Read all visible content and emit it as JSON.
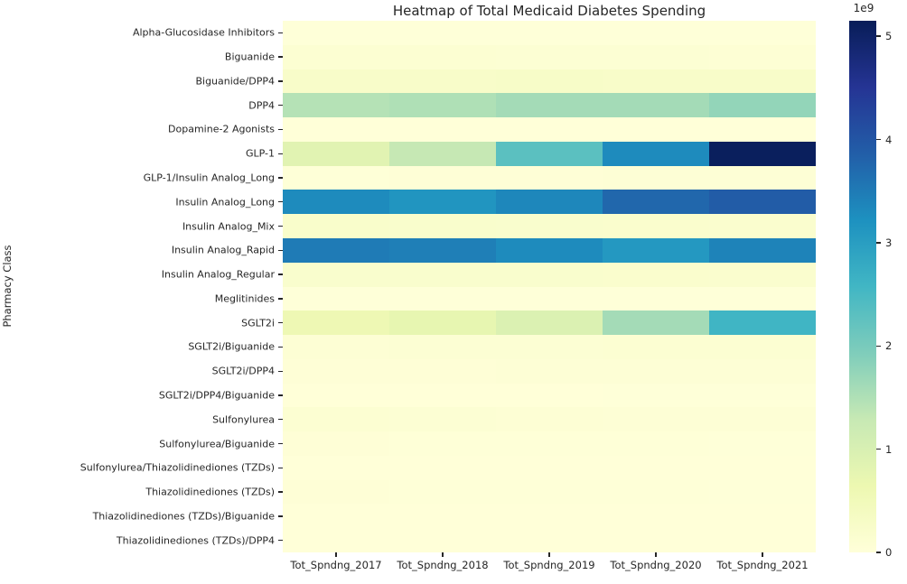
{
  "chart_data": {
    "type": "heatmap",
    "title": "Heatmap of Total Medicaid Diabetes Spending",
    "ylabel": "Pharmacy Class",
    "xlabel": "",
    "columns": [
      "Tot_Spndng_2017",
      "Tot_Spndng_2018",
      "Tot_Spndng_2019",
      "Tot_Spndng_2020",
      "Tot_Spndng_2021"
    ],
    "rows": [
      "Alpha-Glucosidase Inhibitors",
      "Biguanide",
      "Biguanide/DPP4",
      "DPP4",
      "Dopamine-2 Agonists",
      "GLP-1",
      "GLP-1/Insulin Analog_Long",
      "Insulin Analog_Long",
      "Insulin Analog_Mix",
      "Insulin Analog_Rapid",
      "Insulin Analog_Regular",
      "Meglitinides",
      "SGLT2i",
      "SGLT2i/Biguanide",
      "SGLT2i/DPP4",
      "SGLT2i/DPP4/Biguanide",
      "Sulfonylurea",
      "Sulfonylurea/Biguanide",
      "Sulfonylurea/Thiazolidinediones (TZDs)",
      "Thiazolidinediones (TZDs)",
      "Thiazolidinediones (TZDs)/Biguanide",
      "Thiazolidinediones (TZDs)/DPP4"
    ],
    "values_unit": "billions_usd",
    "values": [
      [
        0.02,
        0.02,
        0.02,
        0.02,
        0.02
      ],
      [
        0.12,
        0.11,
        0.1,
        0.09,
        0.08
      ],
      [
        0.25,
        0.25,
        0.27,
        0.26,
        0.25
      ],
      [
        1.45,
        1.5,
        1.6,
        1.6,
        1.75
      ],
      [
        0.01,
        0.01,
        0.01,
        0.01,
        0.01
      ],
      [
        0.85,
        1.3,
        2.3,
        3.3,
        5.1
      ],
      [
        0.04,
        0.05,
        0.05,
        0.06,
        0.07
      ],
      [
        3.3,
        3.15,
        3.35,
        3.75,
        3.9
      ],
      [
        0.22,
        0.21,
        0.2,
        0.19,
        0.18
      ],
      [
        3.5,
        3.45,
        3.3,
        3.1,
        3.4
      ],
      [
        0.2,
        0.2,
        0.2,
        0.19,
        0.18
      ],
      [
        0.02,
        0.02,
        0.02,
        0.02,
        0.02
      ],
      [
        0.6,
        0.75,
        0.95,
        1.6,
        2.6
      ],
      [
        0.08,
        0.09,
        0.1,
        0.11,
        0.12
      ],
      [
        0.05,
        0.05,
        0.06,
        0.06,
        0.07
      ],
      [
        0.01,
        0.01,
        0.01,
        0.02,
        0.02
      ],
      [
        0.12,
        0.1,
        0.08,
        0.07,
        0.06
      ],
      [
        0.05,
        0.04,
        0.03,
        0.03,
        0.02
      ],
      [
        0.01,
        0.01,
        0.01,
        0.01,
        0.01
      ],
      [
        0.05,
        0.04,
        0.03,
        0.03,
        0.02
      ],
      [
        0.01,
        0.01,
        0.01,
        0.01,
        0.01
      ],
      [
        0.01,
        0.01,
        0.01,
        0.01,
        0.01
      ]
    ],
    "colorbar": {
      "exponent_label": "1e9",
      "ticks": [
        0,
        1,
        2,
        3,
        4,
        5
      ],
      "vmin": 0,
      "vmax": 5.15
    },
    "colormap": {
      "name": "YlGnBu",
      "anchors": [
        {
          "pos": 0.0,
          "color": "#ffffd9"
        },
        {
          "pos": 0.125,
          "color": "#edf8b1"
        },
        {
          "pos": 0.25,
          "color": "#c7e9b4"
        },
        {
          "pos": 0.375,
          "color": "#7fcdbb"
        },
        {
          "pos": 0.5,
          "color": "#41b6c4"
        },
        {
          "pos": 0.625,
          "color": "#1d91c0"
        },
        {
          "pos": 0.75,
          "color": "#225ea8"
        },
        {
          "pos": 0.875,
          "color": "#253494"
        },
        {
          "pos": 1.0,
          "color": "#081d58"
        }
      ]
    },
    "layout": {
      "grid": "off",
      "legend": "colorbar-right"
    }
  }
}
